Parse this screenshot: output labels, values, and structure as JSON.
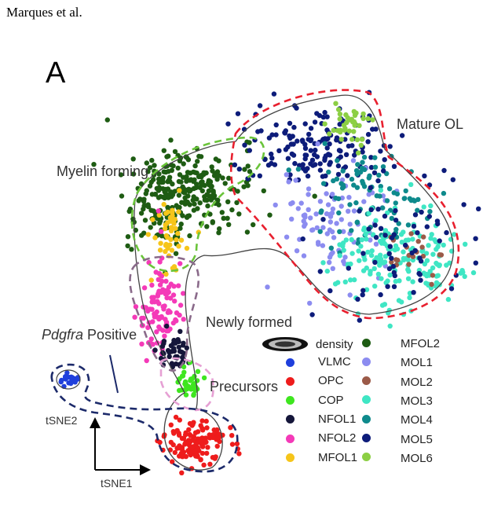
{
  "header": "Marques et al.",
  "panel_label": "A",
  "group_labels": {
    "mature": "Mature OL",
    "myelin": "Myelin forming",
    "newly": "Newly formed",
    "precursors": "Precursors",
    "pdgfra_gene": "Pdgfra",
    "pdgfra_rest": " Positive"
  },
  "axes": {
    "y": "tSNE2",
    "x": "tSNE1"
  },
  "legend": {
    "density": "density",
    "items": [
      {
        "name": "VLMC",
        "color": "#1f3fdc"
      },
      {
        "name": "OPC",
        "color": "#ee1c1c"
      },
      {
        "name": "COP",
        "color": "#3ee61f"
      },
      {
        "name": "NFOL1",
        "color": "#15163a"
      },
      {
        "name": "NFOL2",
        "color": "#f43ab8"
      },
      {
        "name": "MFOL1",
        "color": "#f6c51a"
      },
      {
        "name": "MFOL2",
        "color": "#1e5c13"
      },
      {
        "name": "MOL1",
        "color": "#8c8cf0"
      },
      {
        "name": "MOL2",
        "color": "#9b5a48"
      },
      {
        "name": "MOL3",
        "color": "#3fe6c4"
      },
      {
        "name": "MOL4",
        "color": "#0e8a8c"
      },
      {
        "name": "MOL5",
        "color": "#0d1c7a"
      },
      {
        "name": "MOL6",
        "color": "#8ccf44"
      }
    ]
  }
}
